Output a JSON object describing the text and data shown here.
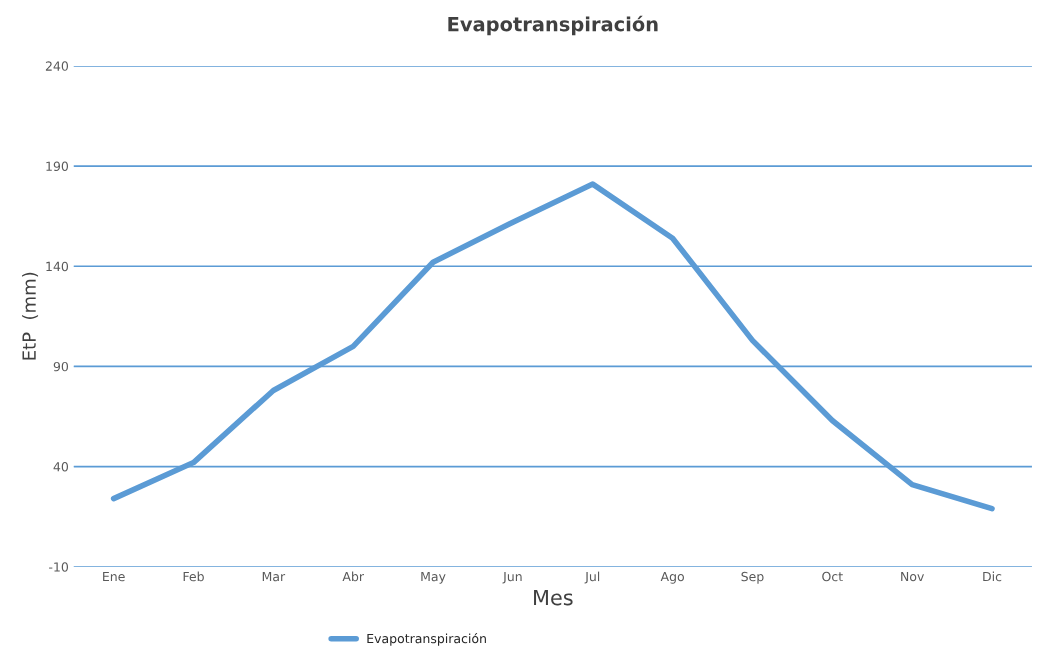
{
  "chart_data": {
    "type": "line",
    "title": "Evapotranspiración",
    "xlabel": "Mes",
    "ylabel": "EtP  (mm)",
    "categories": [
      "Ene",
      "Feb",
      "Mar",
      "Abr",
      "May",
      "Jun",
      "Jul",
      "Ago",
      "Sep",
      "Oct",
      "Nov",
      "Dic"
    ],
    "series": [
      {
        "name": "Evapotranspiración",
        "color": "#5b9bd5",
        "values": [
          24,
          42,
          78,
          100,
          142,
          162,
          181,
          154,
          103,
          63,
          31,
          19
        ]
      }
    ],
    "ylim": [
      -10,
      240
    ],
    "yticks": [
      -10,
      40,
      90,
      140,
      190,
      240
    ],
    "grid": "y",
    "legend": "bottom",
    "marker": "none",
    "line_style": "solid"
  }
}
